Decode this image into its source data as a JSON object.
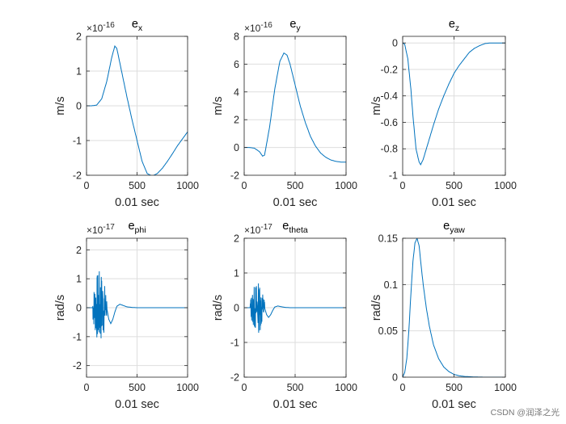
{
  "chart_data": [
    {
      "type": "line",
      "title": "e",
      "title_sub": "x",
      "xlabel": "0.01 sec",
      "ylabel": "m/s",
      "exponent": "16",
      "xlim": [
        0,
        1000
      ],
      "ylim": [
        -2,
        2
      ],
      "xticks": [
        0,
        500,
        1000
      ],
      "yticks": [
        -2,
        -1,
        0,
        1,
        2
      ],
      "grid": true,
      "series": [
        {
          "color": "#0072bd",
          "x": [
            0,
            50,
            100,
            150,
            200,
            250,
            280,
            300,
            350,
            400,
            450,
            500,
            550,
            600,
            650,
            700,
            750,
            800,
            850,
            900,
            950,
            1000
          ],
          "y": [
            0,
            0,
            0.02,
            0.2,
            0.7,
            1.4,
            1.72,
            1.65,
            0.95,
            0.25,
            -0.4,
            -1.0,
            -1.6,
            -1.95,
            -2.02,
            -1.95,
            -1.8,
            -1.6,
            -1.38,
            -1.15,
            -0.95,
            -0.75
          ]
        }
      ]
    },
    {
      "type": "line",
      "title": "e",
      "title_sub": "y",
      "xlabel": "0.01 sec",
      "ylabel": "m/s",
      "exponent": "16",
      "xlim": [
        0,
        1000
      ],
      "ylim": [
        -2,
        8
      ],
      "xticks": [
        0,
        500,
        1000
      ],
      "yticks": [
        -2,
        0,
        2,
        4,
        6,
        8
      ],
      "grid": true,
      "series": [
        {
          "color": "#0072bd",
          "x": [
            0,
            50,
            100,
            150,
            180,
            200,
            250,
            300,
            350,
            390,
            420,
            450,
            500,
            550,
            600,
            650,
            700,
            750,
            800,
            850,
            900,
            950,
            1000
          ],
          "y": [
            0,
            0,
            -0.05,
            -0.3,
            -0.62,
            -0.55,
            1.5,
            4.2,
            6.2,
            6.8,
            6.65,
            6.0,
            4.5,
            3.0,
            1.8,
            0.8,
            0.1,
            -0.4,
            -0.7,
            -0.9,
            -1.0,
            -1.05,
            -1.05
          ]
        }
      ]
    },
    {
      "type": "line",
      "title": "e",
      "title_sub": "z",
      "xlabel": "0.01 sec",
      "ylabel": "m/s",
      "exponent": "",
      "xlim": [
        0,
        1000
      ],
      "ylim": [
        -1,
        0.05
      ],
      "xticks": [
        0,
        500,
        1000
      ],
      "yticks": [
        -1,
        -0.8,
        -0.6,
        -0.4,
        -0.2,
        0
      ],
      "grid": true,
      "series": [
        {
          "color": "#0072bd",
          "x": [
            0,
            20,
            50,
            80,
            100,
            130,
            160,
            175,
            200,
            250,
            300,
            350,
            400,
            450,
            500,
            550,
            600,
            650,
            700,
            750,
            800,
            850,
            900,
            950,
            1000
          ],
          "y": [
            0,
            -0.01,
            -0.12,
            -0.35,
            -0.55,
            -0.8,
            -0.9,
            -0.92,
            -0.88,
            -0.75,
            -0.62,
            -0.5,
            -0.4,
            -0.31,
            -0.23,
            -0.17,
            -0.12,
            -0.07,
            -0.04,
            -0.02,
            -0.005,
            0.0,
            0.0,
            0.0,
            0.0
          ]
        }
      ]
    },
    {
      "type": "line",
      "title": "e",
      "title_sub": "phi",
      "xlabel": "0.01 sec",
      "ylabel": "rad/s",
      "exponent": "17",
      "xlim": [
        0,
        1000
      ],
      "ylim": [
        -2.4,
        2.4
      ],
      "xticks": [
        0,
        500,
        1000
      ],
      "yticks": [
        -2,
        -1,
        0,
        1,
        2
      ],
      "grid": true,
      "noise": {
        "x0": 60,
        "x1": 200,
        "amp": 1.3,
        "seed": 7
      },
      "series": [
        {
          "color": "#0072bd",
          "x": [
            0,
            50,
            60,
            200,
            220,
            240,
            260,
            280,
            300,
            330,
            360,
            400,
            450,
            500,
            600,
            700,
            800,
            900,
            1000
          ],
          "y": [
            0,
            0,
            0,
            0,
            -0.4,
            -0.55,
            -0.4,
            -0.15,
            0.05,
            0.12,
            0.08,
            0.03,
            0.01,
            0,
            0,
            0,
            0,
            0,
            0
          ]
        }
      ]
    },
    {
      "type": "line",
      "title": "e",
      "title_sub": "theta",
      "xlabel": "0.01 sec",
      "ylabel": "rad/s",
      "exponent": "17",
      "xlim": [
        0,
        1000
      ],
      "ylim": [
        -2,
        2
      ],
      "xticks": [
        0,
        500,
        1000
      ],
      "yticks": [
        -2,
        -1,
        0,
        1,
        2
      ],
      "grid": true,
      "noise": {
        "x0": 60,
        "x1": 200,
        "amp": 0.75,
        "seed": 13
      },
      "series": [
        {
          "color": "#0072bd",
          "x": [
            0,
            50,
            60,
            200,
            220,
            240,
            260,
            280,
            300,
            330,
            360,
            400,
            450,
            500,
            600,
            700,
            800,
            900,
            1000
          ],
          "y": [
            0,
            0,
            0,
            0,
            -0.2,
            -0.28,
            -0.2,
            -0.08,
            0.02,
            0.05,
            0.03,
            0.01,
            0,
            0,
            0,
            0,
            0,
            0,
            0
          ]
        }
      ]
    },
    {
      "type": "line",
      "title": "e",
      "title_sub": "yaw",
      "xlabel": "0.01 sec",
      "ylabel": "rad/s",
      "exponent": "",
      "xlim": [
        0,
        1000
      ],
      "ylim": [
        0,
        0.15
      ],
      "xticks": [
        0,
        500,
        1000
      ],
      "yticks": [
        0,
        0.05,
        0.1,
        0.15
      ],
      "grid": true,
      "series": [
        {
          "color": "#0072bd",
          "x": [
            0,
            20,
            40,
            60,
            80,
            100,
            120,
            140,
            160,
            180,
            200,
            230,
            260,
            300,
            350,
            400,
            450,
            500,
            550,
            600,
            700,
            800,
            900,
            1000
          ],
          "y": [
            0,
            0.005,
            0.02,
            0.05,
            0.09,
            0.125,
            0.145,
            0.15,
            0.142,
            0.12,
            0.1,
            0.075,
            0.055,
            0.035,
            0.02,
            0.011,
            0.006,
            0.003,
            0.0015,
            0.0008,
            0.0002,
            0,
            0,
            0
          ]
        }
      ]
    }
  ],
  "watermark": "CSDN @润泽之光"
}
